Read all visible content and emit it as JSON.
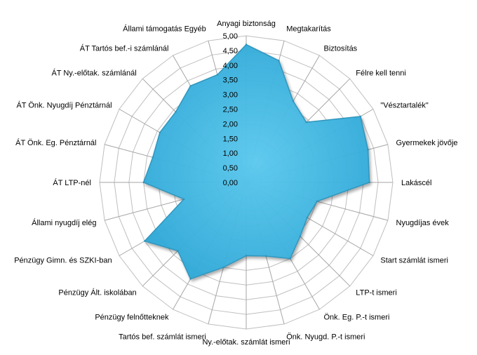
{
  "chart_data": {
    "type": "radar",
    "categories": [
      "Anyagi biztonság",
      "Megtakarítás",
      "Biztosítás",
      "Félre kell tenni",
      "\"Vésztartalék\"",
      "Gyermekek jövője",
      "Lakáscél",
      "Nyugdíjas évek",
      "Start számlát  ismeri",
      "LTP-t ismeri",
      "Önk. Eg. P.-t ismeri",
      "Önk. Nyugd.  P.-t ismeri",
      "Ny.-előtak. számlát  ismeri",
      "Tartós bef. számlát  ismeri",
      "Pénzügy felnőtteknek",
      "Pénzügy Ált. iskolában",
      "Pénzügy Gimn.  és SZKI-ban",
      "Állami nyugdíj elég",
      "ÁT  LTP-nél",
      "ÁT Önk. Eg.  Pénztárnál",
      "ÁT Önk. Nyugdíj  Pénztárnál",
      "ÁT Ny.-előtak.  számlánál",
      "ÁT Tartós bef.-i számlánál",
      "Állami támogatás  Egyéb"
    ],
    "series": [
      {
        "name": "",
        "values": [
          4.7,
          4.3,
          3.2,
          2.9,
          4.5,
          4.3,
          4.2,
          2.5,
          2.4,
          2.6,
          3.0,
          2.6,
          2.5,
          3.0,
          3.8,
          3.3,
          4.0,
          2.2,
          3.5,
          3.3,
          3.4,
          3.4,
          3.8,
          3.8
        ]
      }
    ],
    "ylim": [
      0,
      5
    ],
    "tick_labels": [
      "0,00",
      "0,50",
      "1,00",
      "1,50",
      "2,00",
      "2,50",
      "3,00",
      "3,50",
      "4,00",
      "4,50",
      "5,00"
    ],
    "grid": true,
    "legend": "none",
    "colors": {
      "fill": "#3ab7e2",
      "stroke": "#2a93bb",
      "grid": "#bfbfbf",
      "axis": "#a6a6a6"
    }
  }
}
